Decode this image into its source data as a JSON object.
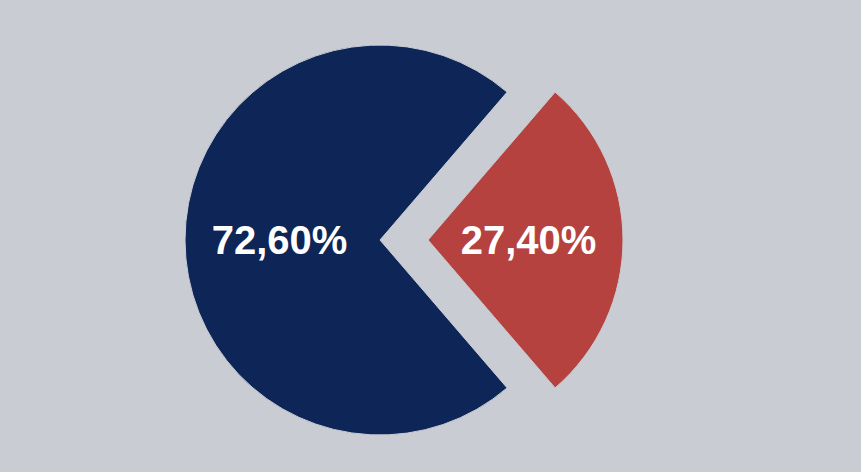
{
  "chart_data": {
    "type": "pie",
    "values": [
      72.6,
      27.4
    ],
    "value_labels": [
      "72,60%",
      "27,40%"
    ],
    "colors": [
      "#0d2557",
      "#b5423f"
    ],
    "data_labels": true
  }
}
